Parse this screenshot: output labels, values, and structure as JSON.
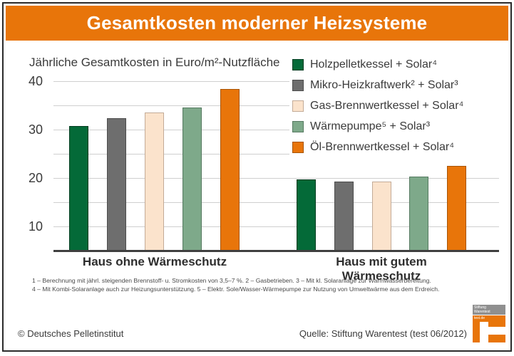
{
  "header": {
    "title": "Gesamtkosten moderner Heizsysteme"
  },
  "colors": {
    "accent_orange": "#e8750a",
    "frame": "#2b2b2b",
    "gridline": "#cfcfcf",
    "baseline": "#3f3f3f",
    "logo_gray": "#8f8f8f"
  },
  "chart_data": {
    "type": "bar",
    "title": "Gesamtkosten moderner Heizsysteme",
    "ylabel": "Jährliche Gesamtkosten in Euro/m²-Nutzfläche",
    "xlabel": "",
    "categories": [
      "Haus ohne Wärmeschutz",
      "Haus mit gutem Wärmeschutz"
    ],
    "series": [
      {
        "name": "Holzpelletkessel + Solar⁴",
        "color": "#046a38",
        "border": "#033c20",
        "values": [
          30.7,
          19.7
        ]
      },
      {
        "name": "Mikro-Heizkraftwerk² + Solar³",
        "color": "#6e6e6e",
        "border": "#4d4d4d",
        "values": [
          32.4,
          19.3
        ]
      },
      {
        "name": "Gas-Brennwertkessel + Solar⁴",
        "color": "#fbe3cc",
        "border": "#c3ab97",
        "values": [
          33.6,
          19.3
        ]
      },
      {
        "name": "Wärmepumpe⁵ + Solar³",
        "color": "#7ea98a",
        "border": "#567a61",
        "values": [
          34.5,
          20.3
        ]
      },
      {
        "name": "Öl-Brennwertkessel + Solar⁴",
        "color": "#e8750a",
        "border": "#a85405",
        "values": [
          38.4,
          22.5
        ]
      }
    ],
    "ylim": [
      5,
      40
    ],
    "yticks_labeled": [
      40,
      30,
      20,
      10
    ],
    "gridlines": [
      40,
      35,
      30,
      25,
      20,
      15,
      10
    ],
    "grid": true,
    "legend_position": "upper right"
  },
  "footnotes": [
    "1 – Berechnung mit jährl. steigenden Brennstoff- u. Stromkosten von 3,5–7 %. 2 – Gasbetrieben. 3 – Mit kl. Solaranlage zur Warmwasserbereitung.",
    "4 – Mit Kombi-Solaranlage auch zur Heizungsunterstützung. 5 – Elektr. Sole/Wasser-Wärmepumpe zur Nutzung von Umweltwärme aus dem Erdreich."
  ],
  "footer": {
    "copyright": "© Deutsches Pelletinstitut",
    "source": "Quelle: Stiftung Warentest (test 06/2012)"
  },
  "logo": {
    "line1": "Stiftung",
    "line2": "Warentest",
    "domain": "test.de"
  }
}
